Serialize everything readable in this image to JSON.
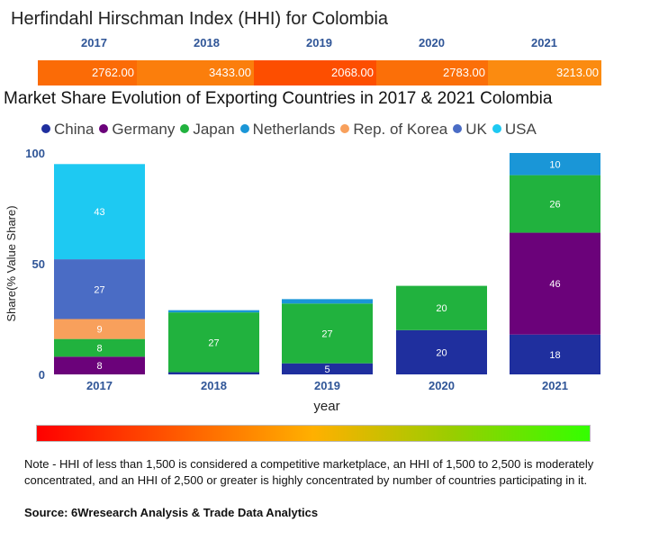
{
  "hhi": {
    "title": "Herfindahl Hirschman Index (HHI) for Colombia",
    "years": [
      "2017",
      "2018",
      "2019",
      "2020",
      "2021"
    ],
    "values": [
      "2762.00",
      "3433.00",
      "2068.00",
      "2783.00",
      "3213.00"
    ],
    "colors": [
      "#fb6b06",
      "#fb7e0c",
      "#fd4e00",
      "#fb6f08",
      "#fb8b10"
    ]
  },
  "chart_title": "Market Share Evolution of Exporting Countries in 2017 & 2021 Colombia",
  "chart_data": {
    "type": "bar",
    "stacked": true,
    "title": "Market Share Evolution of Exporting Countries in 2017 & 2021 Colombia",
    "xlabel": "year",
    "ylabel": "Share(% Value Share)",
    "ylim": [
      0,
      100
    ],
    "yticks": [
      "0",
      "50",
      "100"
    ],
    "categories": [
      "2017",
      "2018",
      "2019",
      "2020",
      "2021"
    ],
    "series": [
      {
        "name": "China",
        "color": "#1f2f9e",
        "values": [
          0,
          1,
          5,
          20,
          18
        ],
        "labels": [
          "",
          "",
          "5",
          "20",
          "18"
        ]
      },
      {
        "name": "Germany",
        "color": "#6b027a",
        "values": [
          8,
          0,
          0,
          0,
          46
        ],
        "labels": [
          "8",
          "",
          "",
          "",
          "46"
        ]
      },
      {
        "name": "Japan",
        "color": "#21b23e",
        "values": [
          8,
          27,
          27,
          20,
          26
        ],
        "labels": [
          "8",
          "27",
          "27",
          "20",
          "26"
        ]
      },
      {
        "name": "Netherlands",
        "color": "#1a96d7",
        "values": [
          0,
          1,
          2,
          0,
          10
        ],
        "labels": [
          "",
          "",
          "",
          "",
          "10"
        ]
      },
      {
        "name": "Rep. of Korea",
        "color": "#f8a05c",
        "values": [
          9,
          0,
          0,
          0,
          0
        ],
        "labels": [
          "9",
          "",
          "",
          "",
          ""
        ]
      },
      {
        "name": "UK",
        "color": "#4a6cc5",
        "values": [
          27,
          0,
          0,
          0,
          0
        ],
        "labels": [
          "27",
          "",
          "",
          "",
          ""
        ]
      },
      {
        "name": "USA",
        "color": "#1ec9f2",
        "values": [
          43,
          0,
          0,
          0,
          0
        ],
        "labels": [
          "43",
          "",
          "",
          "",
          ""
        ]
      }
    ],
    "legend_position": "top"
  },
  "footer": {
    "note": "Note - HHI of less than 1,500 is considered a competitive marketplace, an HHI of 1,500 to 2,500 is moderately concentrated, and an HHI of 2,500 or greater is highly concentrated by number of countries participating in it.",
    "source": "Source: 6Wresearch Analysis & Trade Data Analytics"
  }
}
